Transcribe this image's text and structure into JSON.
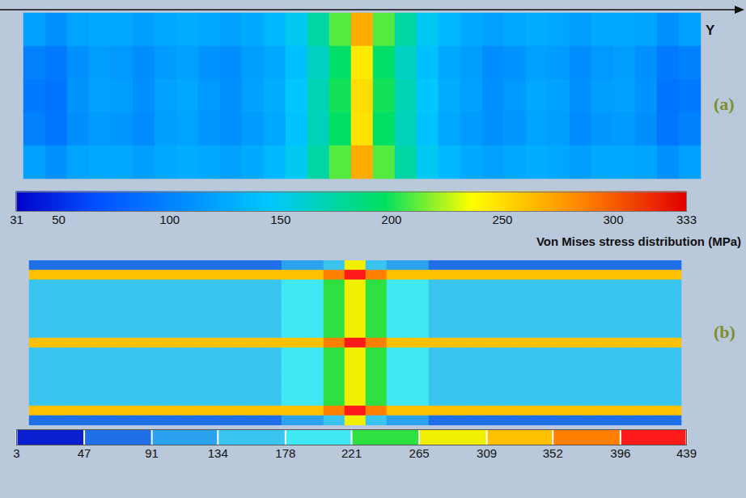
{
  "chart_data": [
    {
      "type": "heatmap",
      "title": "(a)",
      "xlabel": "Y",
      "tick_labels": false,
      "cells": [
        [
          120,
          110,
          122,
          125,
          125,
          118,
          124,
          128,
          125,
          120,
          126,
          135,
          150,
          175,
          210,
          270,
          210,
          175,
          150,
          135,
          126,
          120,
          125,
          128,
          124,
          118,
          125,
          125,
          122,
          110,
          120
        ],
        [
          100,
          95,
          110,
          118,
          115,
          108,
          116,
          120,
          112,
          108,
          118,
          125,
          140,
          165,
          195,
          245,
          195,
          165,
          140,
          125,
          118,
          108,
          112,
          120,
          116,
          108,
          115,
          118,
          110,
          95,
          100
        ],
        [
          95,
          90,
          112,
          120,
          118,
          110,
          120,
          124,
          115,
          110,
          120,
          128,
          145,
          170,
          200,
          250,
          200,
          170,
          145,
          128,
          120,
          110,
          115,
          124,
          120,
          110,
          118,
          120,
          112,
          90,
          95
        ],
        [
          100,
          92,
          108,
          116,
          114,
          106,
          118,
          122,
          114,
          110,
          116,
          124,
          142,
          168,
          196,
          248,
          196,
          168,
          142,
          124,
          116,
          110,
          114,
          122,
          118,
          106,
          114,
          116,
          108,
          92,
          100
        ],
        [
          120,
          110,
          122,
          125,
          125,
          118,
          124,
          128,
          125,
          120,
          126,
          135,
          150,
          175,
          210,
          270,
          210,
          175,
          150,
          135,
          126,
          120,
          125,
          128,
          124,
          118,
          125,
          125,
          122,
          110,
          120
        ]
      ],
      "colorbar": {
        "label": "Von Mises stress distribution (MPa)",
        "range": [
          31,
          333
        ],
        "ticks": [
          31,
          50,
          100,
          150,
          200,
          250,
          300,
          333
        ]
      }
    },
    {
      "type": "contour",
      "title": "(b)",
      "tick_labels": false,
      "colors": [
        "#0b1fd0",
        "#1f6fe8",
        "#2aa2ee",
        "#3ac4f0",
        "#40e8f4",
        "#2ee040",
        "#f0f000",
        "#ffc000",
        "#ff8000",
        "#ff1a1a"
      ],
      "cells": [
        [
          60,
          60,
          60,
          60,
          60,
          60,
          60,
          60,
          60,
          60,
          60,
          60,
          100,
          120,
          160,
          280,
          160,
          120,
          100,
          60,
          60,
          60,
          60,
          60,
          60,
          60,
          60,
          60,
          60,
          60,
          60
        ],
        [
          330,
          330,
          330,
          330,
          330,
          330,
          330,
          330,
          330,
          330,
          330,
          330,
          330,
          330,
          360,
          400,
          360,
          330,
          330,
          330,
          330,
          330,
          330,
          330,
          330,
          330,
          330,
          330,
          330,
          330,
          330
        ],
        [
          150,
          150,
          150,
          150,
          150,
          150,
          150,
          150,
          150,
          150,
          150,
          150,
          190,
          190,
          230,
          285,
          230,
          190,
          190,
          150,
          150,
          150,
          150,
          150,
          150,
          150,
          150,
          150,
          150,
          150,
          150
        ],
        [
          150,
          150,
          150,
          150,
          150,
          150,
          150,
          150,
          150,
          150,
          150,
          150,
          190,
          190,
          230,
          285,
          230,
          190,
          190,
          150,
          150,
          150,
          150,
          150,
          150,
          150,
          150,
          150,
          150,
          150,
          150
        ],
        [
          150,
          150,
          150,
          150,
          150,
          150,
          150,
          150,
          150,
          150,
          150,
          150,
          190,
          190,
          230,
          285,
          230,
          190,
          190,
          150,
          150,
          150,
          150,
          150,
          150,
          150,
          150,
          150,
          150,
          150,
          150
        ],
        [
          150,
          150,
          150,
          150,
          150,
          150,
          150,
          150,
          150,
          150,
          150,
          150,
          190,
          190,
          230,
          285,
          230,
          190,
          190,
          150,
          150,
          150,
          150,
          150,
          150,
          150,
          150,
          150,
          150,
          150,
          150
        ],
        [
          150,
          150,
          150,
          150,
          150,
          150,
          150,
          150,
          150,
          150,
          150,
          150,
          190,
          190,
          230,
          285,
          230,
          190,
          190,
          150,
          150,
          150,
          150,
          150,
          150,
          150,
          150,
          150,
          150,
          150,
          150
        ],
        [
          150,
          150,
          150,
          150,
          150,
          150,
          150,
          150,
          150,
          150,
          150,
          150,
          190,
          190,
          230,
          285,
          230,
          190,
          190,
          150,
          150,
          150,
          150,
          150,
          150,
          150,
          150,
          150,
          150,
          150,
          150
        ],
        [
          330,
          330,
          330,
          330,
          330,
          330,
          330,
          330,
          330,
          330,
          330,
          330,
          330,
          330,
          360,
          400,
          360,
          330,
          330,
          330,
          330,
          330,
          330,
          330,
          330,
          330,
          330,
          330,
          330,
          330,
          330
        ],
        [
          150,
          150,
          150,
          150,
          150,
          150,
          150,
          150,
          150,
          150,
          150,
          150,
          190,
          190,
          230,
          285,
          230,
          190,
          190,
          150,
          150,
          150,
          150,
          150,
          150,
          150,
          150,
          150,
          150,
          150,
          150
        ],
        [
          150,
          150,
          150,
          150,
          150,
          150,
          150,
          150,
          150,
          150,
          150,
          150,
          190,
          190,
          230,
          285,
          230,
          190,
          190,
          150,
          150,
          150,
          150,
          150,
          150,
          150,
          150,
          150,
          150,
          150,
          150
        ],
        [
          150,
          150,
          150,
          150,
          150,
          150,
          150,
          150,
          150,
          150,
          150,
          150,
          190,
          190,
          230,
          285,
          230,
          190,
          190,
          150,
          150,
          150,
          150,
          150,
          150,
          150,
          150,
          150,
          150,
          150,
          150
        ],
        [
          150,
          150,
          150,
          150,
          150,
          150,
          150,
          150,
          150,
          150,
          150,
          150,
          190,
          190,
          230,
          285,
          230,
          190,
          190,
          150,
          150,
          150,
          150,
          150,
          150,
          150,
          150,
          150,
          150,
          150,
          150
        ],
        [
          150,
          150,
          150,
          150,
          150,
          150,
          150,
          150,
          150,
          150,
          150,
          150,
          190,
          190,
          230,
          285,
          230,
          190,
          190,
          150,
          150,
          150,
          150,
          150,
          150,
          150,
          150,
          150,
          150,
          150,
          150
        ],
        [
          150,
          150,
          150,
          150,
          150,
          150,
          150,
          150,
          150,
          150,
          150,
          150,
          190,
          190,
          230,
          285,
          230,
          190,
          190,
          150,
          150,
          150,
          150,
          150,
          150,
          150,
          150,
          150,
          150,
          150,
          150
        ],
        [
          330,
          330,
          330,
          330,
          330,
          330,
          330,
          330,
          330,
          330,
          330,
          330,
          330,
          330,
          360,
          400,
          360,
          330,
          330,
          330,
          330,
          330,
          330,
          330,
          330,
          330,
          330,
          330,
          330,
          330,
          330
        ],
        [
          60,
          60,
          60,
          60,
          60,
          60,
          60,
          60,
          60,
          60,
          60,
          60,
          100,
          120,
          160,
          280,
          160,
          120,
          100,
          60,
          60,
          60,
          60,
          60,
          60,
          60,
          60,
          60,
          60,
          60,
          60
        ]
      ],
      "colorbar": {
        "range": [
          3,
          439
        ],
        "ticks": [
          3,
          47,
          91,
          134,
          178,
          221,
          265,
          309,
          352,
          396,
          439
        ]
      }
    }
  ]
}
